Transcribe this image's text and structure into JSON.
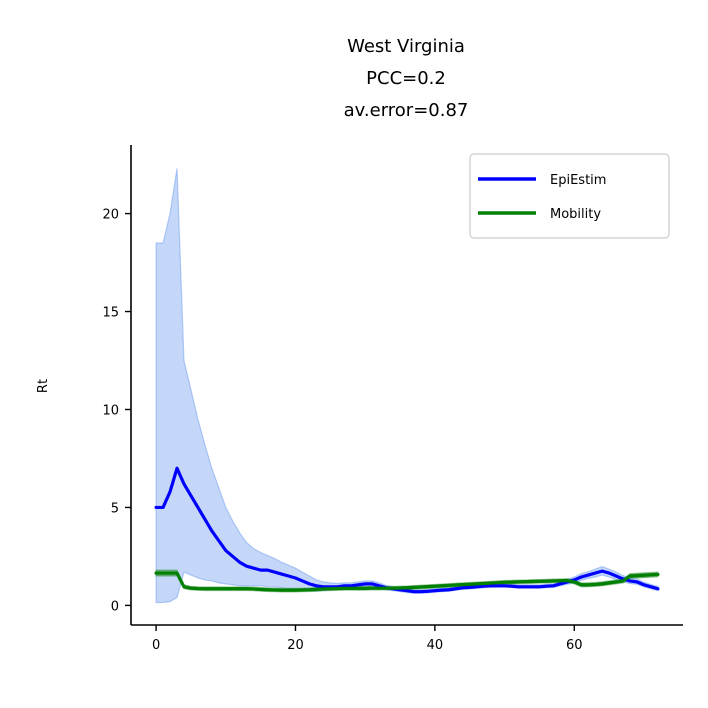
{
  "chart_data": {
    "type": "line",
    "title_lines": [
      "West Virginia",
      "PCC=0.2",
      "av.error=0.87"
    ],
    "xlabel": "",
    "ylabel": "Rt",
    "xlim": [
      -3.6,
      75.6
    ],
    "ylim": [
      -1.0,
      23.5
    ],
    "xticks": [
      0,
      20,
      40,
      60
    ],
    "yticks": [
      0,
      5,
      10,
      15,
      20
    ],
    "legend_position": "upper right",
    "grid": false,
    "x": [
      0,
      1,
      2,
      3,
      4,
      5,
      6,
      7,
      8,
      9,
      10,
      11,
      12,
      13,
      14,
      15,
      16,
      17,
      18,
      19,
      20,
      21,
      22,
      23,
      24,
      25,
      26,
      27,
      28,
      29,
      30,
      31,
      32,
      33,
      34,
      35,
      36,
      37,
      38,
      39,
      40,
      41,
      42,
      43,
      44,
      45,
      46,
      47,
      48,
      49,
      50,
      51,
      52,
      53,
      54,
      55,
      56,
      57,
      58,
      59,
      60,
      61,
      62,
      63,
      64,
      65,
      66,
      67,
      68,
      69,
      70,
      71,
      72
    ],
    "series": [
      {
        "name": "EpiEstim",
        "color": "#0000ff",
        "band_color": "#6495ed",
        "values": [
          5.0,
          5.0,
          5.8,
          7.0,
          6.2,
          5.6,
          5.0,
          4.4,
          3.8,
          3.3,
          2.8,
          2.5,
          2.2,
          2.0,
          1.9,
          1.8,
          1.8,
          1.7,
          1.6,
          1.5,
          1.4,
          1.25,
          1.1,
          1.0,
          0.95,
          0.95,
          0.95,
          1.0,
          1.0,
          1.05,
          1.1,
          1.1,
          1.0,
          0.9,
          0.85,
          0.8,
          0.75,
          0.7,
          0.7,
          0.72,
          0.75,
          0.78,
          0.8,
          0.85,
          0.9,
          0.92,
          0.95,
          0.98,
          1.0,
          1.0,
          1.0,
          0.98,
          0.95,
          0.95,
          0.95,
          0.95,
          0.98,
          1.0,
          1.1,
          1.2,
          1.3,
          1.45,
          1.55,
          1.65,
          1.75,
          1.65,
          1.5,
          1.35,
          1.25,
          1.2,
          1.05,
          0.95,
          0.85
        ],
        "lower": [
          0.15,
          0.15,
          0.2,
          0.4,
          1.7,
          1.55,
          1.4,
          1.3,
          1.25,
          1.15,
          1.1,
          1.05,
          1.0,
          1.0,
          1.0,
          1.0,
          0.95,
          0.95,
          0.9,
          0.85,
          0.85,
          0.8,
          0.75,
          0.72,
          0.75,
          0.78,
          0.8,
          0.85,
          0.85,
          0.9,
          0.95,
          0.95,
          0.88,
          0.8,
          0.75,
          0.7,
          0.65,
          0.62,
          0.62,
          0.64,
          0.67,
          0.7,
          0.72,
          0.77,
          0.82,
          0.84,
          0.87,
          0.9,
          0.92,
          0.93,
          0.93,
          0.91,
          0.88,
          0.88,
          0.88,
          0.88,
          0.9,
          0.92,
          1.0,
          1.08,
          1.15,
          1.28,
          1.38,
          1.45,
          1.55,
          1.45,
          1.32,
          1.2,
          1.12,
          1.08,
          0.95,
          0.85,
          0.75
        ],
        "upper": [
          18.5,
          18.5,
          20.0,
          22.3,
          12.5,
          11.0,
          9.5,
          8.2,
          7.0,
          6.0,
          5.0,
          4.3,
          3.7,
          3.2,
          2.9,
          2.7,
          2.55,
          2.4,
          2.2,
          2.05,
          1.9,
          1.7,
          1.5,
          1.3,
          1.2,
          1.15,
          1.12,
          1.15,
          1.15,
          1.2,
          1.25,
          1.25,
          1.15,
          1.02,
          0.96,
          0.9,
          0.86,
          0.8,
          0.8,
          0.82,
          0.85,
          0.88,
          0.9,
          0.95,
          1.0,
          1.02,
          1.05,
          1.08,
          1.1,
          1.1,
          1.1,
          1.08,
          1.05,
          1.05,
          1.05,
          1.05,
          1.08,
          1.1,
          1.22,
          1.33,
          1.45,
          1.62,
          1.72,
          1.85,
          1.98,
          1.85,
          1.7,
          1.52,
          1.4,
          1.35,
          1.18,
          1.07,
          0.97
        ]
      },
      {
        "name": "Mobility",
        "color": "#008000",
        "band_color": "#2e8b2e",
        "values": [
          1.65,
          1.65,
          1.65,
          1.65,
          0.95,
          0.88,
          0.86,
          0.85,
          0.85,
          0.85,
          0.85,
          0.85,
          0.85,
          0.85,
          0.84,
          0.82,
          0.8,
          0.79,
          0.78,
          0.78,
          0.78,
          0.79,
          0.8,
          0.82,
          0.84,
          0.85,
          0.86,
          0.87,
          0.87,
          0.87,
          0.87,
          0.88,
          0.88,
          0.88,
          0.88,
          0.89,
          0.9,
          0.92,
          0.94,
          0.96,
          0.98,
          1.0,
          1.02,
          1.04,
          1.06,
          1.08,
          1.1,
          1.12,
          1.14,
          1.16,
          1.18,
          1.19,
          1.2,
          1.21,
          1.22,
          1.23,
          1.24,
          1.25,
          1.26,
          1.27,
          1.2,
          1.05,
          1.05,
          1.07,
          1.1,
          1.15,
          1.2,
          1.25,
          1.5,
          1.52,
          1.54,
          1.56,
          1.58
        ],
        "lower": [
          1.5,
          1.5,
          1.5,
          1.5,
          0.85,
          0.79,
          0.77,
          0.76,
          0.76,
          0.76,
          0.76,
          0.76,
          0.76,
          0.76,
          0.75,
          0.73,
          0.71,
          0.7,
          0.69,
          0.69,
          0.69,
          0.7,
          0.71,
          0.73,
          0.75,
          0.76,
          0.77,
          0.78,
          0.78,
          0.78,
          0.78,
          0.79,
          0.79,
          0.79,
          0.79,
          0.8,
          0.81,
          0.83,
          0.85,
          0.87,
          0.89,
          0.91,
          0.93,
          0.95,
          0.97,
          0.99,
          1.01,
          1.03,
          1.05,
          1.07,
          1.09,
          1.1,
          1.11,
          1.12,
          1.13,
          1.14,
          1.15,
          1.16,
          1.17,
          1.18,
          1.1,
          0.95,
          0.95,
          0.97,
          1.0,
          1.05,
          1.1,
          1.15,
          1.38,
          1.4,
          1.42,
          1.44,
          1.46
        ],
        "upper": [
          1.8,
          1.8,
          1.8,
          1.8,
          1.05,
          0.97,
          0.95,
          0.94,
          0.94,
          0.94,
          0.94,
          0.94,
          0.94,
          0.94,
          0.93,
          0.91,
          0.89,
          0.88,
          0.87,
          0.87,
          0.87,
          0.88,
          0.89,
          0.91,
          0.93,
          0.94,
          0.95,
          0.96,
          0.96,
          0.96,
          0.96,
          0.97,
          0.97,
          0.97,
          0.97,
          0.98,
          0.99,
          1.01,
          1.03,
          1.05,
          1.07,
          1.09,
          1.11,
          1.13,
          1.15,
          1.17,
          1.19,
          1.21,
          1.23,
          1.25,
          1.27,
          1.28,
          1.29,
          1.3,
          1.31,
          1.32,
          1.33,
          1.34,
          1.35,
          1.36,
          1.3,
          1.15,
          1.15,
          1.17,
          1.2,
          1.25,
          1.3,
          1.35,
          1.62,
          1.64,
          1.66,
          1.68,
          1.7
        ]
      }
    ]
  }
}
